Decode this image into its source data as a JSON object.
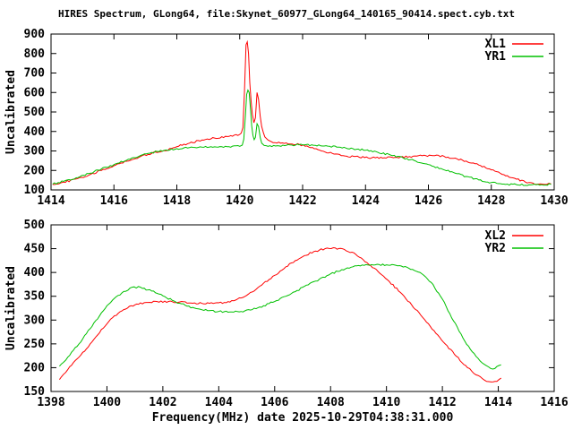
{
  "title": "HIRES Spectrum, GLong64, file:Skynet_60977_GLong64_140165_90414.spect.cyb.txt",
  "xlabel": "Frequency(MHz) date 2025-10-29T04:38:31.000",
  "colors": {
    "series_red": "#ff0000",
    "series_green": "#00c000",
    "axis": "#000000",
    "background": "#ffffff",
    "text": "#000000"
  },
  "chart_data": [
    {
      "type": "line",
      "panel": "top",
      "ylabel": "Uncalibrated",
      "xlim": [
        1414,
        1430
      ],
      "ylim": [
        100,
        900
      ],
      "xticks": [
        1414,
        1416,
        1418,
        1420,
        1422,
        1424,
        1426,
        1428,
        1430
      ],
      "yticks": [
        100,
        200,
        300,
        400,
        500,
        600,
        700,
        800,
        900
      ],
      "grid": false,
      "legend_position": "top-right-inside",
      "series": [
        {
          "name": "XL1",
          "color": "#ff0000",
          "points": [
            [
              1414.05,
              128
            ],
            [
              1414.4,
              140
            ],
            [
              1414.8,
              156
            ],
            [
              1415.2,
              176
            ],
            [
              1415.6,
              200
            ],
            [
              1416,
              224
            ],
            [
              1416.4,
              247
            ],
            [
              1416.8,
              268
            ],
            [
              1417.2,
              287
            ],
            [
              1417.6,
              302
            ],
            [
              1418,
              322
            ],
            [
              1418.4,
              340
            ],
            [
              1418.8,
              356
            ],
            [
              1419.2,
              366
            ],
            [
              1419.6,
              374
            ],
            [
              1420,
              385
            ],
            [
              1420.05,
              392
            ],
            [
              1420.1,
              420
            ],
            [
              1420.15,
              600
            ],
            [
              1420.2,
              845
            ],
            [
              1420.24,
              860
            ],
            [
              1420.28,
              800
            ],
            [
              1420.32,
              650
            ],
            [
              1420.36,
              560
            ],
            [
              1420.4,
              490
            ],
            [
              1420.45,
              445
            ],
            [
              1420.5,
              470
            ],
            [
              1420.55,
              600
            ],
            [
              1420.6,
              565
            ],
            [
              1420.65,
              480
            ],
            [
              1420.7,
              425
            ],
            [
              1420.75,
              395
            ],
            [
              1420.8,
              372
            ],
            [
              1420.9,
              356
            ],
            [
              1421,
              348
            ],
            [
              1421.3,
              340
            ],
            [
              1421.6,
              336
            ],
            [
              1421.9,
              333
            ],
            [
              1422.2,
              320
            ],
            [
              1422.6,
              300
            ],
            [
              1423,
              284
            ],
            [
              1423.4,
              273
            ],
            [
              1423.8,
              268
            ],
            [
              1424.2,
              265
            ],
            [
              1424.6,
              265
            ],
            [
              1425,
              267
            ],
            [
              1425.4,
              271
            ],
            [
              1425.8,
              275
            ],
            [
              1426.2,
              276
            ],
            [
              1426.5,
              272
            ],
            [
              1426.8,
              262
            ],
            [
              1427.2,
              248
            ],
            [
              1427.6,
              228
            ],
            [
              1428,
              203
            ],
            [
              1428.4,
              178
            ],
            [
              1428.8,
              155
            ],
            [
              1429.2,
              138
            ],
            [
              1429.5,
              130
            ],
            [
              1429.7,
              128
            ],
            [
              1429.9,
              131
            ]
          ]
        },
        {
          "name": "YR1",
          "color": "#00c000",
          "points": [
            [
              1414.05,
              130
            ],
            [
              1414.4,
              144
            ],
            [
              1414.8,
              162
            ],
            [
              1415.2,
              184
            ],
            [
              1415.6,
              207
            ],
            [
              1416,
              230
            ],
            [
              1416.4,
              252
            ],
            [
              1416.8,
              273
            ],
            [
              1417.2,
              292
            ],
            [
              1417.6,
              303
            ],
            [
              1418,
              312
            ],
            [
              1418.4,
              317
            ],
            [
              1418.8,
              320
            ],
            [
              1419.2,
              321
            ],
            [
              1419.6,
              322
            ],
            [
              1420,
              324
            ],
            [
              1420.08,
              330
            ],
            [
              1420.13,
              360
            ],
            [
              1420.18,
              480
            ],
            [
              1420.22,
              590
            ],
            [
              1420.26,
              612
            ],
            [
              1420.3,
              600
            ],
            [
              1420.34,
              520
            ],
            [
              1420.38,
              430
            ],
            [
              1420.42,
              380
            ],
            [
              1420.46,
              358
            ],
            [
              1420.5,
              370
            ],
            [
              1420.55,
              440
            ],
            [
              1420.6,
              425
            ],
            [
              1420.65,
              370
            ],
            [
              1420.7,
              340
            ],
            [
              1420.78,
              328
            ],
            [
              1420.9,
              324
            ],
            [
              1421.2,
              327
            ],
            [
              1421.6,
              331
            ],
            [
              1422,
              331
            ],
            [
              1422.4,
              329
            ],
            [
              1422.8,
              325
            ],
            [
              1423.2,
              319
            ],
            [
              1423.6,
              312
            ],
            [
              1424,
              303
            ],
            [
              1424.4,
              292
            ],
            [
              1424.8,
              279
            ],
            [
              1425.2,
              264
            ],
            [
              1425.6,
              248
            ],
            [
              1426,
              230
            ],
            [
              1426.4,
              210
            ],
            [
              1426.8,
              189
            ],
            [
              1427.2,
              169
            ],
            [
              1427.6,
              151
            ],
            [
              1428,
              138
            ],
            [
              1428.4,
              130
            ],
            [
              1428.8,
              127
            ],
            [
              1429.2,
              126
            ],
            [
              1429.6,
              127
            ],
            [
              1429.9,
              128
            ]
          ]
        }
      ]
    },
    {
      "type": "line",
      "panel": "bottom",
      "ylabel": "Uncalibrated",
      "xlim": [
        1398,
        1416
      ],
      "ylim": [
        150,
        500
      ],
      "xticks": [
        1398,
        1400,
        1402,
        1404,
        1406,
        1408,
        1410,
        1412,
        1414,
        1416
      ],
      "yticks": [
        150,
        200,
        250,
        300,
        350,
        400,
        450,
        500
      ],
      "grid": false,
      "legend_position": "top-right-inside",
      "series": [
        {
          "name": "XL2",
          "color": "#ff0000",
          "points": [
            [
              1398.3,
              175
            ],
            [
              1398.6,
              196
            ],
            [
              1399,
              222
            ],
            [
              1399.4,
              250
            ],
            [
              1399.8,
              280
            ],
            [
              1400.2,
              305
            ],
            [
              1400.6,
              322
            ],
            [
              1401,
              332
            ],
            [
              1401.4,
              337
            ],
            [
              1401.8,
              339
            ],
            [
              1402.2,
              339
            ],
            [
              1402.6,
              338
            ],
            [
              1403,
              336
            ],
            [
              1403.4,
              335
            ],
            [
              1403.8,
              335
            ],
            [
              1404.2,
              337
            ],
            [
              1404.6,
              342
            ],
            [
              1405,
              352
            ],
            [
              1405.4,
              368
            ],
            [
              1405.8,
              385
            ],
            [
              1406.2,
              403
            ],
            [
              1406.6,
              420
            ],
            [
              1407,
              433
            ],
            [
              1407.4,
              444
            ],
            [
              1407.8,
              450
            ],
            [
              1408.1,
              452
            ],
            [
              1408.5,
              448
            ],
            [
              1408.9,
              438
            ],
            [
              1409.3,
              421
            ],
            [
              1409.7,
              402
            ],
            [
              1410.1,
              381
            ],
            [
              1410.5,
              358
            ],
            [
              1410.9,
              332
            ],
            [
              1411.3,
              305
            ],
            [
              1411.7,
              278
            ],
            [
              1412.1,
              250
            ],
            [
              1412.5,
              224
            ],
            [
              1412.9,
              200
            ],
            [
              1413.2,
              185
            ],
            [
              1413.5,
              174
            ],
            [
              1413.75,
              170
            ],
            [
              1413.95,
              171
            ],
            [
              1414.1,
              178
            ]
          ]
        },
        {
          "name": "YR2",
          "color": "#00c000",
          "points": [
            [
              1398.3,
              203
            ],
            [
              1398.6,
              222
            ],
            [
              1399,
              250
            ],
            [
              1399.4,
              282
            ],
            [
              1399.8,
              315
            ],
            [
              1400.2,
              342
            ],
            [
              1400.6,
              360
            ],
            [
              1400.9,
              369
            ],
            [
              1401.2,
              369
            ],
            [
              1401.6,
              361
            ],
            [
              1402,
              351
            ],
            [
              1402.4,
              340
            ],
            [
              1402.8,
              331
            ],
            [
              1403.2,
              324
            ],
            [
              1403.6,
              320
            ],
            [
              1404,
              318
            ],
            [
              1404.4,
              317
            ],
            [
              1404.8,
              318
            ],
            [
              1405.2,
              322
            ],
            [
              1405.6,
              330
            ],
            [
              1406,
              339
            ],
            [
              1406.4,
              350
            ],
            [
              1406.8,
              362
            ],
            [
              1407.2,
              374
            ],
            [
              1407.6,
              386
            ],
            [
              1408,
              397
            ],
            [
              1408.4,
              406
            ],
            [
              1408.8,
              412
            ],
            [
              1409.2,
              415
            ],
            [
              1409.6,
              416
            ],
            [
              1410,
              416
            ],
            [
              1410.4,
              414
            ],
            [
              1410.8,
              409
            ],
            [
              1411.2,
              400
            ],
            [
              1411.6,
              379
            ],
            [
              1412,
              344
            ],
            [
              1412.4,
              298
            ],
            [
              1412.8,
              256
            ],
            [
              1413.2,
              224
            ],
            [
              1413.5,
              207
            ],
            [
              1413.8,
              197
            ],
            [
              1414.1,
              206
            ]
          ]
        }
      ]
    }
  ]
}
